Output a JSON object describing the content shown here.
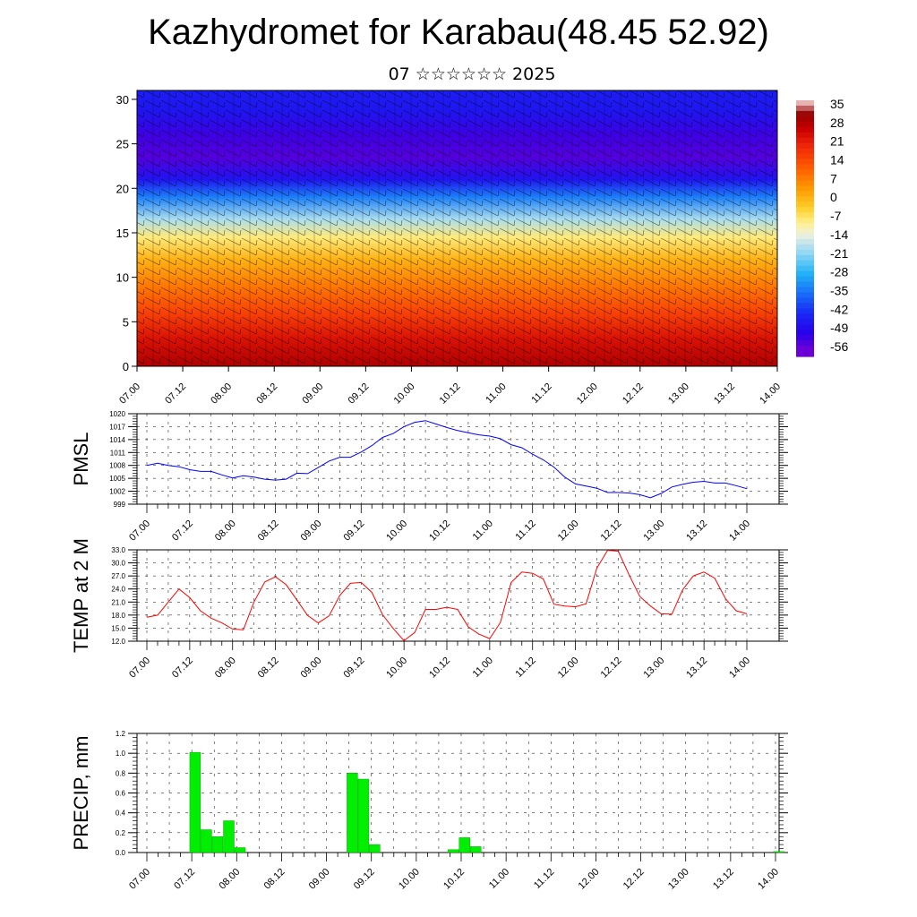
{
  "title": "Kazhydromet for Karabau(48.45 52.92)",
  "subtitle": "07 ☆☆☆☆☆☆ 2025",
  "chart_data": [
    {
      "type": "heatmap",
      "title": "",
      "xlabel": "",
      "ylabel": "",
      "ylim": [
        0,
        31
      ],
      "yticks": [
        "0",
        "5",
        "10",
        "15",
        "20",
        "25",
        "30"
      ],
      "xticks": [
        "07.00",
        "07.12",
        "08.00",
        "08.12",
        "09.00",
        "09.12",
        "10.00",
        "10.12",
        "11.00",
        "11.12",
        "12.00",
        "12.12",
        "13.00",
        "13.12",
        "14.00"
      ],
      "colorbar_labels": [
        "35",
        "28",
        "21",
        "14",
        "7",
        "0",
        "-7",
        "-14",
        "-21",
        "-28",
        "-35",
        "-42",
        "-49",
        "-56"
      ],
      "levels": [
        {
          "y": 0,
          "value": 30
        },
        {
          "y": 3,
          "value": 24
        },
        {
          "y": 6,
          "value": 16
        },
        {
          "y": 9,
          "value": 8
        },
        {
          "y": 12,
          "value": 0
        },
        {
          "y": 14.5,
          "value": -9
        },
        {
          "y": 16.5,
          "value": -20
        },
        {
          "y": 19,
          "value": -36
        },
        {
          "y": 21,
          "value": -50
        },
        {
          "y": 23.5,
          "value": -58
        },
        {
          "y": 26,
          "value": -56
        },
        {
          "y": 28.5,
          "value": -50
        },
        {
          "y": 31,
          "value": -48
        }
      ],
      "overlay": "wind barbs"
    },
    {
      "type": "line",
      "ylabel": "PMSL",
      "ylim": [
        999,
        1020
      ],
      "yticks": [
        "999",
        "1002",
        "1005",
        "1008",
        "1011",
        "1014",
        "1017",
        "1020"
      ],
      "xticks": [
        "07.00",
        "07.12",
        "08.00",
        "08.12",
        "09.00",
        "09.12",
        "10.00",
        "10.12",
        "11.00",
        "11.12",
        "12.00",
        "12.12",
        "13.00",
        "13.12",
        "14.00"
      ],
      "color": "#0000ff",
      "x": [
        0,
        3,
        6,
        9,
        12,
        15,
        18,
        21,
        24,
        27,
        30,
        33,
        36,
        39,
        42,
        45,
        48,
        51,
        54,
        57,
        60,
        63,
        66,
        69,
        72,
        75,
        78,
        81,
        84,
        87,
        90,
        93,
        96,
        99,
        102,
        105,
        108,
        111,
        114,
        117,
        120,
        123,
        126,
        129,
        132,
        135,
        138,
        141,
        144,
        147,
        150,
        153,
        156,
        159,
        162,
        165,
        168
      ],
      "values": [
        1008.0,
        1008.5,
        1008.0,
        1007.7,
        1007.0,
        1006.6,
        1006.6,
        1005.8,
        1005.1,
        1005.6,
        1005.3,
        1004.8,
        1004.6,
        1004.8,
        1006.2,
        1006.1,
        1007.5,
        1009.0,
        1009.9,
        1009.9,
        1011.1,
        1012.6,
        1014.5,
        1015.4,
        1017.0,
        1018.0,
        1018.4,
        1017.6,
        1016.8,
        1016.1,
        1015.6,
        1015.1,
        1014.8,
        1014.2,
        1012.8,
        1012.1,
        1010.6,
        1009.3,
        1007.6,
        1005.3,
        1003.7,
        1003.2,
        1002.7,
        1001.7,
        1001.7,
        1001.6,
        1001.2,
        1000.5,
        1001.5,
        1003.0,
        1003.6,
        1004.1,
        1004.3,
        1003.9,
        1003.9,
        1003.3,
        1002.6
      ]
    },
    {
      "type": "line",
      "ylabel": "TEMP at 2 M",
      "ylim": [
        12.0,
        33.0
      ],
      "yticks": [
        "12.0",
        "15.0",
        "18.0",
        "21.0",
        "24.0",
        "27.0",
        "30.0",
        "33.0"
      ],
      "xticks": [
        "07.00",
        "07.12",
        "08.00",
        "08.12",
        "09.00",
        "09.12",
        "10.00",
        "10.12",
        "11.00",
        "11.12",
        "12.00",
        "12.12",
        "13.00",
        "13.12",
        "14.00"
      ],
      "color": "#ff0000",
      "x": [
        0,
        3,
        6,
        9,
        12,
        15,
        18,
        21,
        24,
        27,
        30,
        33,
        36,
        39,
        42,
        45,
        48,
        51,
        54,
        57,
        60,
        63,
        66,
        69,
        72,
        75,
        78,
        81,
        84,
        87,
        90,
        93,
        96,
        99,
        102,
        105,
        108,
        111,
        114,
        117,
        120,
        123,
        126,
        129,
        132,
        135,
        138,
        141,
        144,
        147,
        150,
        153,
        156,
        159,
        162,
        165,
        168
      ],
      "values": [
        17.5,
        18.0,
        21.0,
        24.0,
        22.0,
        19.0,
        17.3,
        16.2,
        14.8,
        14.6,
        21.0,
        25.6,
        26.8,
        25.0,
        21.5,
        17.9,
        16.2,
        17.8,
        22.5,
        25.3,
        25.5,
        23.2,
        18.1,
        14.9,
        12.1,
        14.0,
        19.3,
        19.3,
        19.8,
        19.3,
        15.3,
        13.6,
        12.6,
        16.3,
        25.5,
        27.9,
        27.6,
        26.3,
        20.5,
        20.1,
        19.9,
        20.6,
        28.8,
        32.9,
        32.7,
        27.3,
        22.3,
        20.1,
        18.3,
        18.2,
        23.8,
        27.0,
        27.9,
        26.5,
        21.8,
        19.0,
        18.3
      ]
    },
    {
      "type": "bar",
      "ylabel": "PRECIP, mm",
      "ylim": [
        0.0,
        1.2
      ],
      "yticks": [
        "0.0",
        "0.2",
        "0.4",
        "0.6",
        "0.8",
        "1.0",
        "1.2"
      ],
      "xticks": [
        "07.00",
        "07.12",
        "08.00",
        "08.12",
        "09.00",
        "09.12",
        "10.00",
        "10.12",
        "11.00",
        "11.12",
        "12.00",
        "12.12",
        "13.00",
        "13.12",
        "14.00"
      ],
      "color": "#00ee00",
      "bars": [
        {
          "x": 12,
          "value": 1.01
        },
        {
          "x": 15,
          "value": 0.23
        },
        {
          "x": 18,
          "value": 0.16
        },
        {
          "x": 21,
          "value": 0.32
        },
        {
          "x": 24,
          "value": 0.05
        },
        {
          "x": 54,
          "value": 0.8
        },
        {
          "x": 57,
          "value": 0.74
        },
        {
          "x": 60,
          "value": 0.08
        },
        {
          "x": 81,
          "value": 0.03
        },
        {
          "x": 84,
          "value": 0.15
        },
        {
          "x": 87,
          "value": 0.06
        },
        {
          "x": 168,
          "value": 0.01
        }
      ]
    }
  ]
}
